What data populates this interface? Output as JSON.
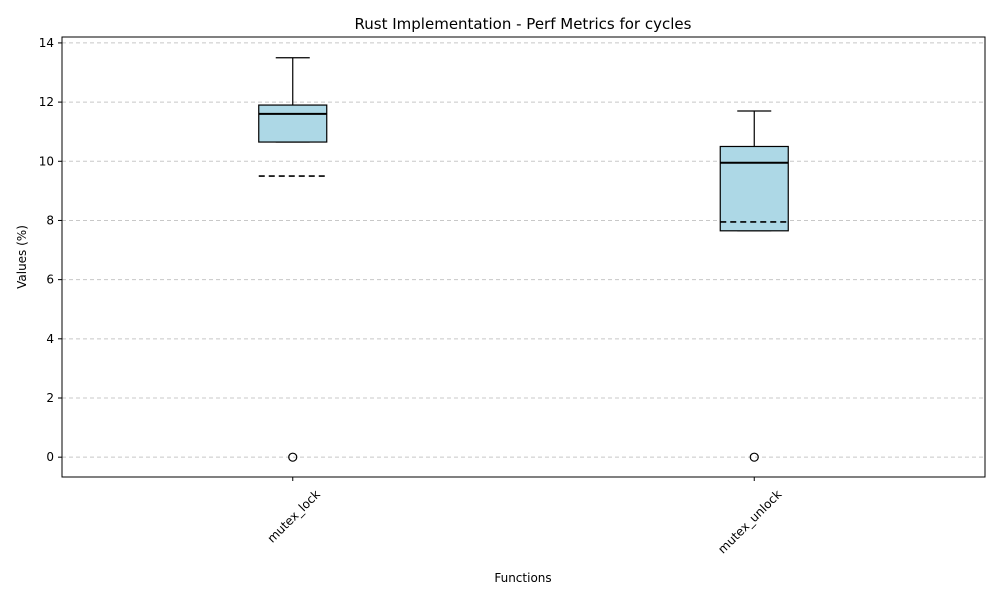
{
  "chart_data": {
    "type": "box",
    "title": "Rust Implementation - Perf Metrics for cycles",
    "xlabel": "Functions",
    "ylabel": "Values (%)",
    "ylim": [
      -0.67,
      14.2
    ],
    "yticks": [
      0,
      2,
      4,
      6,
      8,
      10,
      12,
      14
    ],
    "grid": "y-dashed",
    "box_color": "#add8e6",
    "categories": [
      "mutex_lock",
      "mutex_unlock"
    ],
    "boxes": [
      {
        "category": "mutex_lock",
        "whisker_low": 10.65,
        "q1": 10.65,
        "median": 11.6,
        "q3": 11.9,
        "whisker_high": 13.5,
        "mean": 9.5,
        "outliers": [
          0
        ]
      },
      {
        "category": "mutex_unlock",
        "whisker_low": 7.65,
        "q1": 7.65,
        "median": 9.95,
        "q3": 10.5,
        "whisker_high": 11.7,
        "mean": 7.95,
        "outliers": [
          0
        ]
      }
    ]
  }
}
